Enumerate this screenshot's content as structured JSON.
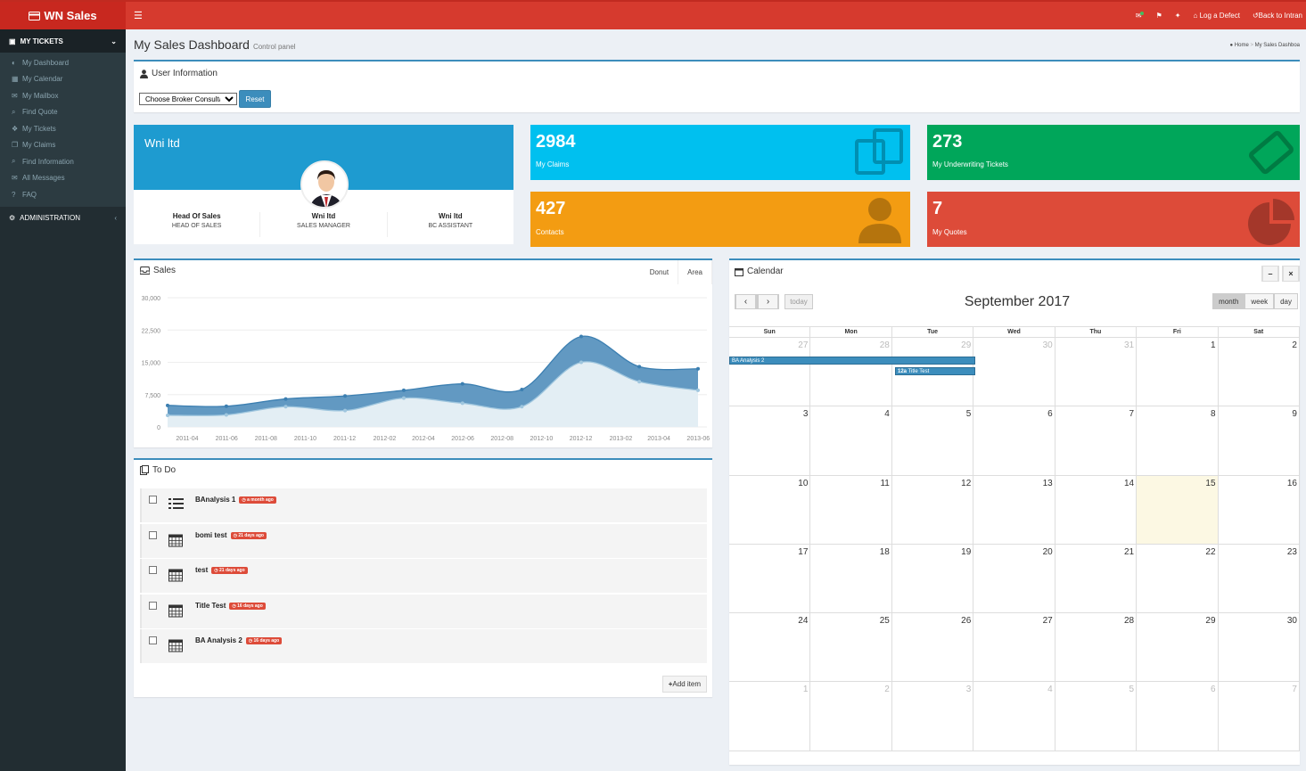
{
  "app": {
    "logo_text": "WN Sales",
    "logo_icon": "credit-card-icon",
    "menu_icon": "bars-icon"
  },
  "topbar": {
    "mail_icon": "envelope-icon",
    "flag_icon": "flag-icon",
    "tag_icon": "tag-icon",
    "defect_label": "Log a Defect",
    "back_label": "Back to Intran"
  },
  "sidebar": {
    "section_tickets": "MY TICKETS",
    "items": [
      {
        "label": "My Dashboard",
        "icon": "dashboard-icon"
      },
      {
        "label": "My Calendar",
        "icon": "calendar-icon"
      },
      {
        "label": "My Mailbox",
        "icon": "envelope-icon"
      },
      {
        "label": "Find Quote",
        "icon": "search-icon"
      },
      {
        "label": "My Tickets",
        "icon": "ticket-icon"
      },
      {
        "label": "My Claims",
        "icon": "copy-icon"
      },
      {
        "label": "Find Information",
        "icon": "search-icon"
      },
      {
        "label": "All Messages",
        "icon": "envelope-icon"
      },
      {
        "label": "FAQ",
        "icon": "question-icon"
      }
    ],
    "section_admin": "ADMINISTRATION"
  },
  "page": {
    "title": "My Sales Dashboard",
    "subtitle": "Control panel",
    "breadcrumb_home": "Home",
    "breadcrumb_current": "My Sales Dashboa"
  },
  "user_info": {
    "title": "User Information",
    "broker_select": "Choose Broker Consultant",
    "reset_label": "Reset"
  },
  "profile": {
    "name": "Wni ltd",
    "columns": [
      {
        "name": "Head Of Sales",
        "role": "HEAD OF SALES"
      },
      {
        "name": "Wni ltd",
        "role": "SALES MANAGER"
      },
      {
        "name": "Wni ltd",
        "role": "BC ASSISTANT"
      }
    ]
  },
  "stats": [
    {
      "value": "2984",
      "label": "My Claims",
      "color": "#00c0ef",
      "icon": "copy-icon"
    },
    {
      "value": "273",
      "label": "My Underwriting Tickets",
      "color": "#00a65a",
      "icon": "ticket-icon"
    },
    {
      "value": "427",
      "label": "Contacts",
      "color": "#f39c12",
      "icon": "user-icon"
    },
    {
      "value": "7",
      "label": "My Quotes",
      "color": "#dd4b39",
      "icon": "pie-chart-icon"
    }
  ],
  "sales": {
    "title": "Sales",
    "tabs": [
      "Donut",
      "Area"
    ],
    "active_tab": "Area"
  },
  "chart_data": {
    "type": "area",
    "title": "",
    "x": [
      "2011-04",
      "2011-06",
      "2011-08",
      "2011-10",
      "2011-12",
      "2012-02",
      "2012-04",
      "2012-06",
      "2012-08",
      "2012-10",
      "2012-12",
      "2013-02",
      "2013-04",
      "2013-06"
    ],
    "x_points": [
      "2011-01",
      "2011-04",
      "2011-06",
      "2011-08",
      "2011-10",
      "2011-12",
      "2012-02",
      "2012-04",
      "2012-06",
      "2012-08",
      "2012-10",
      "2013-01",
      "2013-04",
      "2013-07"
    ],
    "series": [
      {
        "values": [
          5000,
          4800,
          6500,
          7200,
          8500,
          10000,
          8700,
          21000,
          14000,
          13500
        ],
        "x": [
          "2011-04",
          "2011-07",
          "2011-10",
          "2012-01",
          "2012-04",
          "2012-07",
          "2012-10",
          "2013-01",
          "2013-04",
          "2013-07"
        ]
      },
      {
        "values": [
          2700,
          2800,
          4700,
          3800,
          6700,
          5500,
          4700,
          15000,
          10500,
          8500
        ],
        "x": [
          "2011-04",
          "2011-07",
          "2011-10",
          "2012-01",
          "2012-04",
          "2012-07",
          "2012-10",
          "2013-01",
          "2013-04",
          "2013-07"
        ]
      }
    ],
    "yticks": [
      "30,000",
      "22,500",
      "15,000",
      "7,500",
      "0"
    ],
    "ylim": [
      0,
      30000
    ],
    "colors": [
      "#3c8dbc",
      "#a0d0e0"
    ]
  },
  "todo": {
    "title": "To Do",
    "items": [
      {
        "text": "BAnalysis 1",
        "badge": "a month ago",
        "icon": "list-icon"
      },
      {
        "text": "bomi test",
        "badge": "21 days ago",
        "icon": "calendar-icon"
      },
      {
        "text": "test",
        "badge": "21 days ago",
        "icon": "calendar-icon"
      },
      {
        "text": "Title Test",
        "badge": "16 days ago",
        "icon": "calendar-icon"
      },
      {
        "text": "BA Analysis 2",
        "badge": "16 days ago",
        "icon": "calendar-icon"
      }
    ],
    "add_label": "Add item"
  },
  "calendar": {
    "title": "Calendar",
    "month_title": "September 2017",
    "today_label": "today",
    "views": [
      "month",
      "week",
      "day"
    ],
    "active_view": "month",
    "dow": [
      "Sun",
      "Mon",
      "Tue",
      "Wed",
      "Thu",
      "Fri",
      "Sat"
    ],
    "weeks": [
      [
        {
          "d": "27",
          "o": true
        },
        {
          "d": "28",
          "o": true
        },
        {
          "d": "29",
          "o": true
        },
        {
          "d": "30",
          "o": true
        },
        {
          "d": "31",
          "o": true
        },
        {
          "d": "1"
        },
        {
          "d": "2"
        }
      ],
      [
        {
          "d": "3"
        },
        {
          "d": "4"
        },
        {
          "d": "5"
        },
        {
          "d": "6"
        },
        {
          "d": "7"
        },
        {
          "d": "8"
        },
        {
          "d": "9"
        }
      ],
      [
        {
          "d": "10"
        },
        {
          "d": "11"
        },
        {
          "d": "12"
        },
        {
          "d": "13"
        },
        {
          "d": "14"
        },
        {
          "d": "15",
          "t": true
        },
        {
          "d": "16"
        }
      ],
      [
        {
          "d": "17"
        },
        {
          "d": "18"
        },
        {
          "d": "19"
        },
        {
          "d": "20"
        },
        {
          "d": "21"
        },
        {
          "d": "22"
        },
        {
          "d": "23"
        }
      ],
      [
        {
          "d": "24"
        },
        {
          "d": "25"
        },
        {
          "d": "26"
        },
        {
          "d": "27"
        },
        {
          "d": "28"
        },
        {
          "d": "29"
        },
        {
          "d": "30"
        }
      ],
      [
        {
          "d": "1",
          "o": true
        },
        {
          "d": "2",
          "o": true
        },
        {
          "d": "3",
          "o": true
        },
        {
          "d": "4",
          "o": true
        },
        {
          "d": "5",
          "o": true
        },
        {
          "d": "6",
          "o": true
        },
        {
          "d": "7",
          "o": true
        }
      ]
    ],
    "events": [
      {
        "title": "BA Analysis 2"
      },
      {
        "time": "12a",
        "title": "Title Test"
      }
    ]
  }
}
